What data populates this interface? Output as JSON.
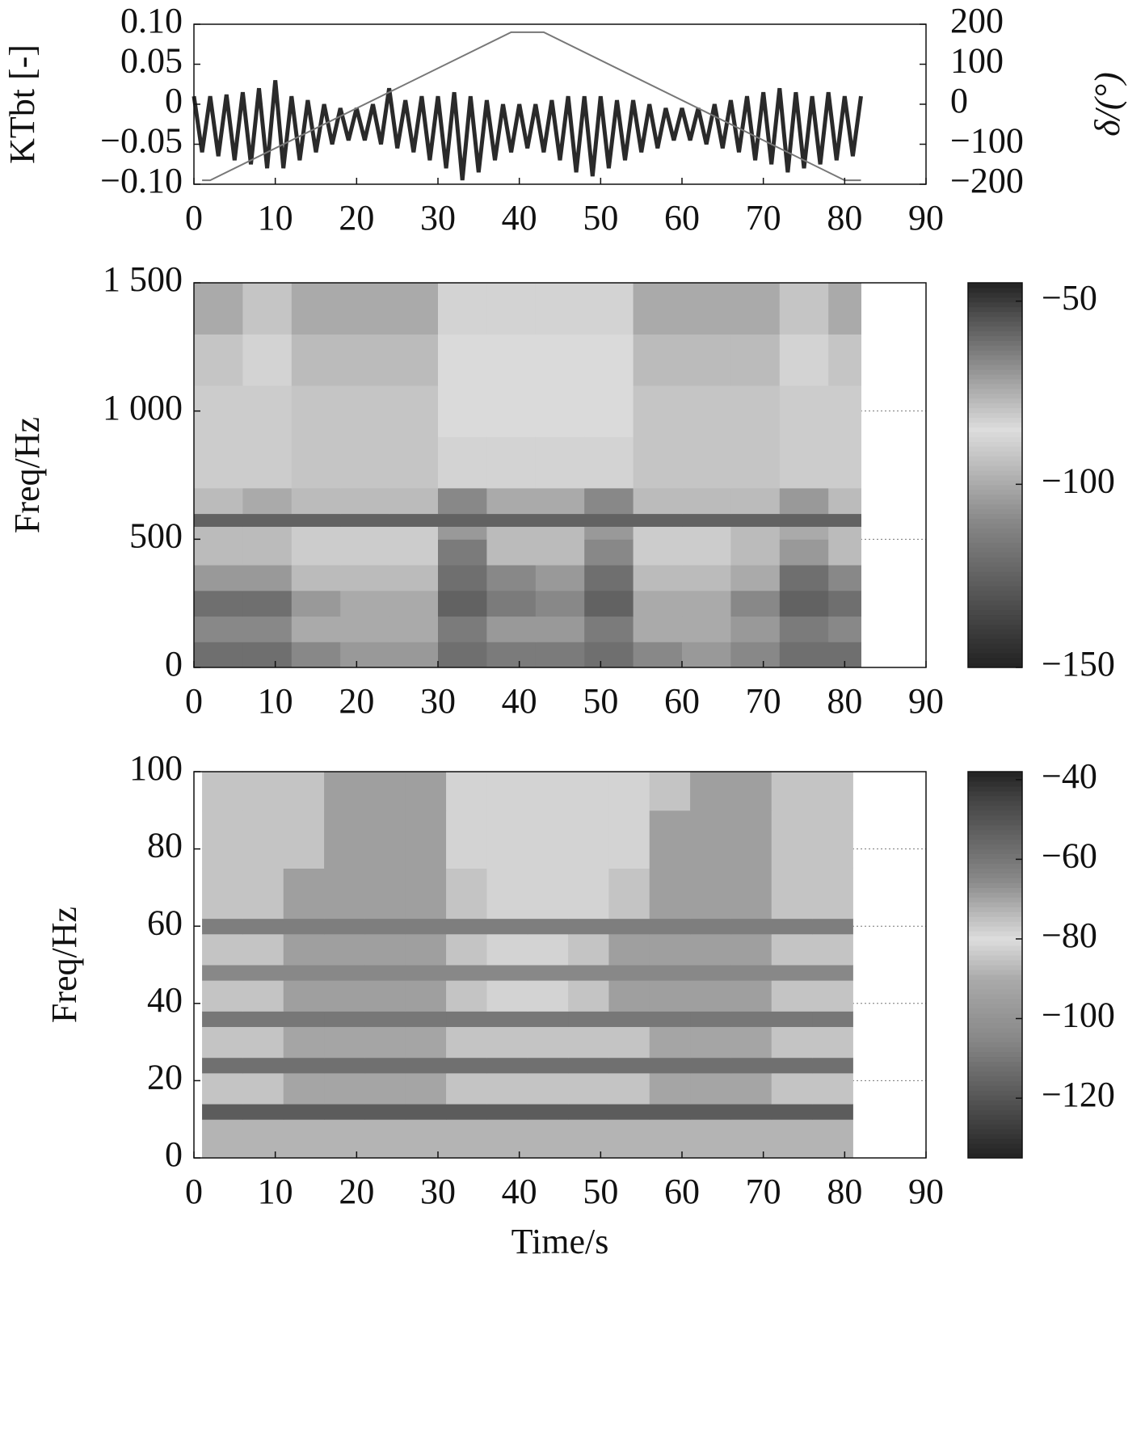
{
  "chart_data": [
    {
      "type": "line",
      "ylabel": "KTbt [-]",
      "y2label": "δ/(°)",
      "xlim": [
        0,
        90
      ],
      "xticks": [
        0,
        10,
        20,
        30,
        40,
        50,
        60,
        70,
        80,
        90
      ],
      "ylim": [
        -0.1,
        0.1
      ],
      "yticks": [
        {
          "value": -0.1,
          "label": "−0.10"
        },
        {
          "value": -0.05,
          "label": "−0.05"
        },
        0,
        0.05,
        {
          "value": 0.1,
          "label": "0.10"
        }
      ],
      "y2lim": [
        -200,
        200
      ],
      "y2ticks": [
        {
          "value": -200,
          "label": "−200"
        },
        {
          "value": -100,
          "label": "−100"
        },
        0,
        100,
        200
      ],
      "grid": false,
      "series": [
        {
          "color": "#2a2a2a",
          "x": [
            0,
            1,
            2,
            3,
            4,
            5,
            6,
            7,
            8,
            9,
            10,
            11,
            12,
            13,
            14,
            15,
            16,
            17,
            18,
            19,
            20,
            21,
            22,
            23,
            24,
            25,
            26,
            27,
            28,
            29,
            30,
            31,
            32,
            33,
            34,
            35,
            36,
            37,
            38,
            39,
            40,
            41,
            42,
            43,
            44,
            45,
            46,
            47,
            48,
            49,
            50,
            51,
            52,
            53,
            54,
            55,
            56,
            57,
            58,
            59,
            60,
            61,
            62,
            63,
            64,
            65,
            66,
            67,
            68,
            69,
            70,
            71,
            72,
            73,
            74,
            75,
            76,
            77,
            78,
            79,
            80,
            81,
            82
          ],
          "values": [
            0.01,
            -0.06,
            0.01,
            -0.065,
            0.012,
            -0.07,
            0.015,
            -0.075,
            0.02,
            -0.08,
            0.03,
            -0.08,
            0.01,
            -0.07,
            0.005,
            -0.06,
            0,
            -0.05,
            -0.005,
            -0.045,
            -0.005,
            -0.045,
            0,
            -0.05,
            0.02,
            -0.055,
            0.005,
            -0.06,
            0.01,
            -0.07,
            0.01,
            -0.08,
            0.015,
            -0.095,
            0.01,
            -0.085,
            0.005,
            -0.07,
            0,
            -0.06,
            0,
            -0.055,
            0,
            -0.06,
            0.005,
            -0.07,
            0.01,
            -0.085,
            0.01,
            -0.09,
            0.01,
            -0.08,
            0.005,
            -0.07,
            0.005,
            -0.06,
            0,
            -0.055,
            -0.005,
            -0.045,
            -0.005,
            -0.045,
            -0.005,
            -0.05,
            0,
            -0.055,
            0.005,
            -0.06,
            0.01,
            -0.07,
            0.015,
            -0.075,
            0.02,
            -0.085,
            0.015,
            -0.08,
            0.01,
            -0.075,
            0.015,
            -0.07,
            0.01,
            -0.065,
            0.01
          ]
        },
        {
          "color": "#777777",
          "axis": "y2",
          "x": [
            1,
            2,
            39,
            43,
            80,
            82
          ],
          "values": [
            -190,
            -190,
            180,
            180,
            -190,
            -190
          ]
        }
      ]
    },
    {
      "type": "heatmap",
      "ylabel": "Freq/Hz",
      "xlim": [
        0,
        90
      ],
      "xticks": [
        0,
        10,
        20,
        30,
        40,
        50,
        60,
        70,
        80,
        90
      ],
      "ylim": [
        0,
        1500
      ],
      "yticks": [
        0,
        500,
        {
          "value": 1000,
          "label": "1 000"
        },
        {
          "value": 1500,
          "label": "1 500"
        }
      ],
      "grid": true,
      "xbins": [
        0,
        6,
        12,
        18,
        24,
        30,
        36,
        42,
        48,
        54,
        60,
        66,
        72,
        78,
        82
      ],
      "ybins": [
        0,
        100,
        200,
        300,
        400,
        500,
        550,
        600,
        700,
        900,
        1100,
        1300,
        1500
      ],
      "z": [
        [
          -120,
          -120,
          -110,
          -105,
          -105,
          -120,
          -115,
          -115,
          -120,
          -110,
          -105,
          -110,
          -120,
          -120
        ],
        [
          -110,
          -110,
          -100,
          -100,
          -100,
          -115,
          -105,
          -105,
          -115,
          -100,
          -100,
          -105,
          -115,
          -110
        ],
        [
          -120,
          -120,
          -105,
          -100,
          -100,
          -125,
          -115,
          -110,
          -125,
          -100,
          -100,
          -110,
          -125,
          -120
        ],
        [
          -105,
          -105,
          -95,
          -95,
          -95,
          -120,
          -110,
          -105,
          -120,
          -95,
          -95,
          -100,
          -120,
          -110
        ],
        [
          -95,
          -95,
          -90,
          -90,
          -90,
          -115,
          -95,
          -95,
          -110,
          -90,
          -90,
          -95,
          -105,
          -95
        ],
        [
          -95,
          -95,
          -90,
          -90,
          -90,
          -105,
          -95,
          -95,
          -105,
          -90,
          -90,
          -95,
          -100,
          -95
        ],
        [
          -125,
          -125,
          -125,
          -125,
          -125,
          -125,
          -125,
          -125,
          -125,
          -125,
          -125,
          -125,
          -125,
          -125
        ],
        [
          -95,
          -100,
          -95,
          -95,
          -95,
          -110,
          -100,
          -100,
          -110,
          -95,
          -95,
          -95,
          -105,
          -95
        ],
        [
          -90,
          -90,
          -92,
          -92,
          -92,
          -88,
          -88,
          -88,
          -88,
          -92,
          -92,
          -92,
          -90,
          -90
        ],
        [
          -90,
          -90,
          -92,
          -92,
          -92,
          -86,
          -86,
          -86,
          -86,
          -92,
          -92,
          -92,
          -90,
          -90
        ],
        [
          -92,
          -88,
          -95,
          -95,
          -95,
          -86,
          -86,
          -86,
          -86,
          -95,
          -95,
          -95,
          -88,
          -92
        ],
        [
          -100,
          -92,
          -100,
          -100,
          -100,
          -88,
          -88,
          -88,
          -88,
          -100,
          -100,
          -100,
          -92,
          -100
        ]
      ],
      "clim": [
        -150,
        -45
      ],
      "cticks": [
        {
          "value": -150,
          "label": "−150"
        },
        {
          "value": -100,
          "label": "−100"
        },
        {
          "value": -50,
          "label": "−50"
        }
      ],
      "colormap": [
        [
          -150,
          "#222222"
        ],
        [
          -130,
          "#555555"
        ],
        [
          -110,
          "#888888"
        ],
        [
          -100,
          "#aaaaaa"
        ],
        [
          -85,
          "#dddddd"
        ],
        [
          -70,
          "#999999"
        ],
        [
          -55,
          "#555555"
        ],
        [
          -45,
          "#222222"
        ]
      ]
    },
    {
      "type": "heatmap",
      "ylabel": "Freq/Hz",
      "xlabel": "Time/s",
      "xlim": [
        0,
        90
      ],
      "xticks": [
        0,
        10,
        20,
        30,
        40,
        50,
        60,
        70,
        80,
        90
      ],
      "ylim": [
        0,
        100
      ],
      "yticks": [
        0,
        20,
        40,
        60,
        80,
        100
      ],
      "grid": true,
      "xbins": [
        1,
        6,
        11,
        16,
        21,
        26,
        31,
        36,
        41,
        46,
        51,
        56,
        61,
        66,
        71,
        76,
        81
      ],
      "ybins": [
        0,
        10,
        14,
        22,
        26,
        34,
        38,
        46,
        50,
        58,
        62,
        75,
        90,
        100
      ],
      "z": [
        [
          -88,
          -88,
          -88,
          -88,
          -88,
          -88,
          -88,
          -88,
          -88,
          -88,
          -88,
          -88,
          -88,
          -88,
          -88,
          -88
        ],
        [
          -118,
          -118,
          -118,
          -118,
          -118,
          -118,
          -118,
          -118,
          -118,
          -118,
          -118,
          -118,
          -118,
          -118,
          -118,
          -118
        ],
        [
          -85,
          -85,
          -92,
          -92,
          -92,
          -92,
          -85,
          -85,
          -85,
          -85,
          -85,
          -92,
          -92,
          -92,
          -85,
          -85
        ],
        [
          -112,
          -112,
          -112,
          -112,
          -112,
          -112,
          -112,
          -112,
          -112,
          -112,
          -112,
          -112,
          -112,
          -112,
          -112,
          -112
        ],
        [
          -85,
          -85,
          -92,
          -92,
          -92,
          -92,
          -85,
          -85,
          -85,
          -85,
          -85,
          -92,
          -92,
          -92,
          -85,
          -85
        ],
        [
          -110,
          -110,
          -110,
          -110,
          -110,
          -110,
          -110,
          -110,
          -110,
          -110,
          -110,
          -110,
          -110,
          -110,
          -110,
          -110
        ],
        [
          -85,
          -85,
          -95,
          -95,
          -95,
          -95,
          -85,
          -82,
          -82,
          -85,
          -95,
          -95,
          -95,
          -95,
          -85,
          -85
        ],
        [
          -105,
          -105,
          -105,
          -105,
          -105,
          -105,
          -105,
          -105,
          -105,
          -105,
          -105,
          -105,
          -105,
          -105,
          -105,
          -105
        ],
        [
          -85,
          -85,
          -95,
          -95,
          -95,
          -95,
          -85,
          -82,
          -82,
          -85,
          -95,
          -95,
          -95,
          -95,
          -85,
          -85
        ],
        [
          -108,
          -108,
          -108,
          -108,
          -108,
          -108,
          -108,
          -108,
          -108,
          -108,
          -108,
          -108,
          -108,
          -108,
          -108,
          -108
        ],
        [
          -85,
          -85,
          -95,
          -95,
          -95,
          -95,
          -85,
          -82,
          -82,
          -82,
          -85,
          -95,
          -95,
          -95,
          -85,
          -85
        ],
        [
          -85,
          -85,
          -85,
          -95,
          -95,
          -95,
          -82,
          -82,
          -82,
          -82,
          -82,
          -95,
          -95,
          -95,
          -85,
          -85
        ],
        [
          -85,
          -85,
          -85,
          -95,
          -95,
          -95,
          -82,
          -82,
          -82,
          -82,
          -82,
          -85,
          -95,
          -95,
          -85,
          -85
        ]
      ],
      "clim": [
        -135,
        -38
      ],
      "cticks": [
        {
          "value": -120,
          "label": "−120"
        },
        {
          "value": -100,
          "label": "−100"
        },
        {
          "value": -80,
          "label": "−80"
        },
        {
          "value": -60,
          "label": "−60"
        },
        {
          "value": -40,
          "label": "−40"
        }
      ],
      "colormap": [
        [
          -135,
          "#222222"
        ],
        [
          -120,
          "#555555"
        ],
        [
          -105,
          "#888888"
        ],
        [
          -90,
          "#aaaaaa"
        ],
        [
          -80,
          "#dddddd"
        ],
        [
          -65,
          "#888888"
        ],
        [
          -45,
          "#444444"
        ],
        [
          -38,
          "#222222"
        ]
      ]
    }
  ]
}
